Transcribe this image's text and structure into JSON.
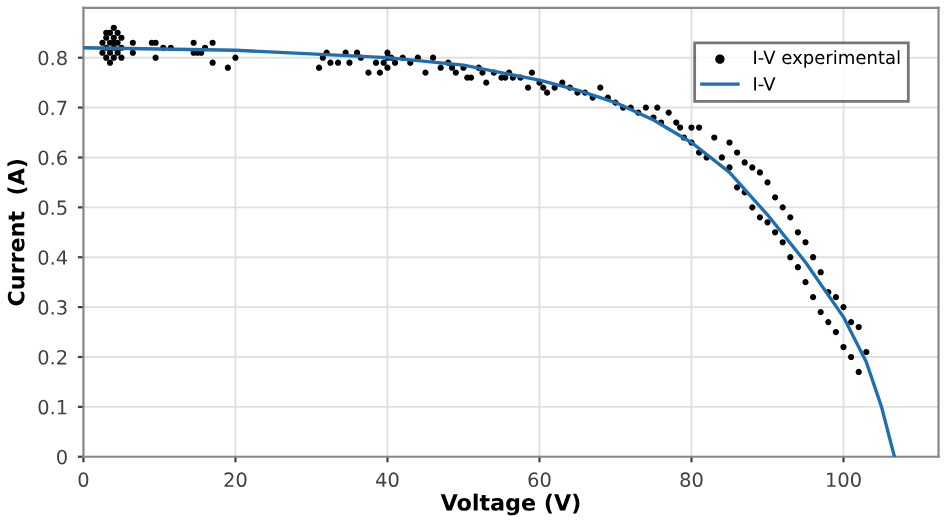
{
  "chart_data": {
    "type": "scatter",
    "xlabel": "Voltage (V)",
    "ylabel": "Current  (A)",
    "xlim": [
      0,
      112.5
    ],
    "ylim": [
      0,
      0.9
    ],
    "xticks": [
      0,
      20,
      40,
      60,
      80,
      100
    ],
    "yticks": [
      0,
      0.1,
      0.2,
      0.3,
      0.4,
      0.5,
      0.6,
      0.7,
      0.8
    ],
    "grid": true,
    "legend": "top right",
    "series": [
      {
        "name": "I-V experimental",
        "marker": "circle",
        "color": "#000000",
        "x": [
          2.5,
          2.5,
          3,
          3,
          3,
          3,
          3.5,
          3.5,
          3.5,
          3.5,
          4,
          4,
          4,
          4,
          4,
          4.5,
          4.5,
          4.5,
          5,
          5,
          5,
          6.5,
          6.5,
          9,
          9.5,
          9.5,
          10.5,
          11.5,
          14.5,
          14.5,
          15,
          15.5,
          16,
          17,
          17,
          19,
          20,
          31,
          31.5,
          32,
          32.5,
          33.5,
          34.5,
          35,
          36,
          36.5,
          37.5,
          38.5,
          39,
          39.5,
          40,
          40,
          40,
          40.5,
          41,
          42,
          43,
          44,
          45,
          46,
          47,
          48,
          48.5,
          49,
          50,
          50.5,
          51,
          52,
          52.5,
          53,
          54,
          55,
          55.5,
          56,
          56.5,
          57.5,
          58.5,
          59,
          60,
          60.5,
          61,
          62,
          63,
          64,
          65,
          66,
          67,
          68,
          69,
          70,
          71,
          72,
          73,
          74,
          75,
          75.5,
          76,
          77,
          78,
          78.5,
          79,
          80,
          80,
          81,
          81,
          82,
          83,
          84,
          85,
          85,
          86,
          86,
          87,
          87,
          88,
          88,
          89,
          89,
          90,
          90,
          91,
          91,
          92,
          92,
          93,
          93,
          94,
          94,
          95,
          95,
          96,
          96,
          97,
          97,
          98,
          98,
          99,
          99,
          100,
          100,
          101,
          101,
          102,
          102,
          103
        ],
        "values": [
          0.81,
          0.83,
          0.8,
          0.82,
          0.84,
          0.85,
          0.79,
          0.81,
          0.83,
          0.85,
          0.8,
          0.82,
          0.84,
          0.86,
          0.83,
          0.81,
          0.83,
          0.85,
          0.8,
          0.82,
          0.84,
          0.81,
          0.83,
          0.83,
          0.8,
          0.83,
          0.82,
          0.82,
          0.81,
          0.83,
          0.81,
          0.81,
          0.82,
          0.79,
          0.83,
          0.78,
          0.8,
          0.78,
          0.8,
          0.81,
          0.79,
          0.79,
          0.81,
          0.79,
          0.81,
          0.8,
          0.77,
          0.79,
          0.77,
          0.79,
          0.78,
          0.8,
          0.81,
          0.8,
          0.79,
          0.8,
          0.79,
          0.8,
          0.77,
          0.8,
          0.78,
          0.79,
          0.78,
          0.77,
          0.78,
          0.76,
          0.76,
          0.78,
          0.77,
          0.75,
          0.77,
          0.76,
          0.76,
          0.77,
          0.76,
          0.76,
          0.74,
          0.77,
          0.75,
          0.74,
          0.73,
          0.74,
          0.75,
          0.74,
          0.73,
          0.73,
          0.72,
          0.74,
          0.72,
          0.71,
          0.7,
          0.7,
          0.69,
          0.7,
          0.68,
          0.7,
          0.67,
          0.69,
          0.67,
          0.66,
          0.64,
          0.66,
          0.63,
          0.61,
          0.66,
          0.6,
          0.64,
          0.6,
          0.63,
          0.58,
          0.61,
          0.54,
          0.59,
          0.53,
          0.58,
          0.5,
          0.57,
          0.48,
          0.55,
          0.47,
          0.52,
          0.45,
          0.5,
          0.43,
          0.48,
          0.4,
          0.45,
          0.38,
          0.43,
          0.35,
          0.4,
          0.32,
          0.37,
          0.29,
          0.33,
          0.27,
          0.32,
          0.25,
          0.3,
          0.22,
          0.27,
          0.2,
          0.26,
          0.17,
          0.21
        ]
      },
      {
        "name": "I-V",
        "type": "line",
        "marker": "none",
        "color": "#1f6fb0",
        "x": [
          0,
          20,
          40,
          50,
          60,
          65,
          70,
          75,
          80,
          85,
          90,
          95,
          100,
          103,
          105,
          106.7
        ],
        "values": [
          0.82,
          0.815,
          0.8,
          0.785,
          0.755,
          0.735,
          0.71,
          0.675,
          0.63,
          0.57,
          0.485,
          0.39,
          0.28,
          0.19,
          0.1,
          0
        ]
      }
    ]
  }
}
